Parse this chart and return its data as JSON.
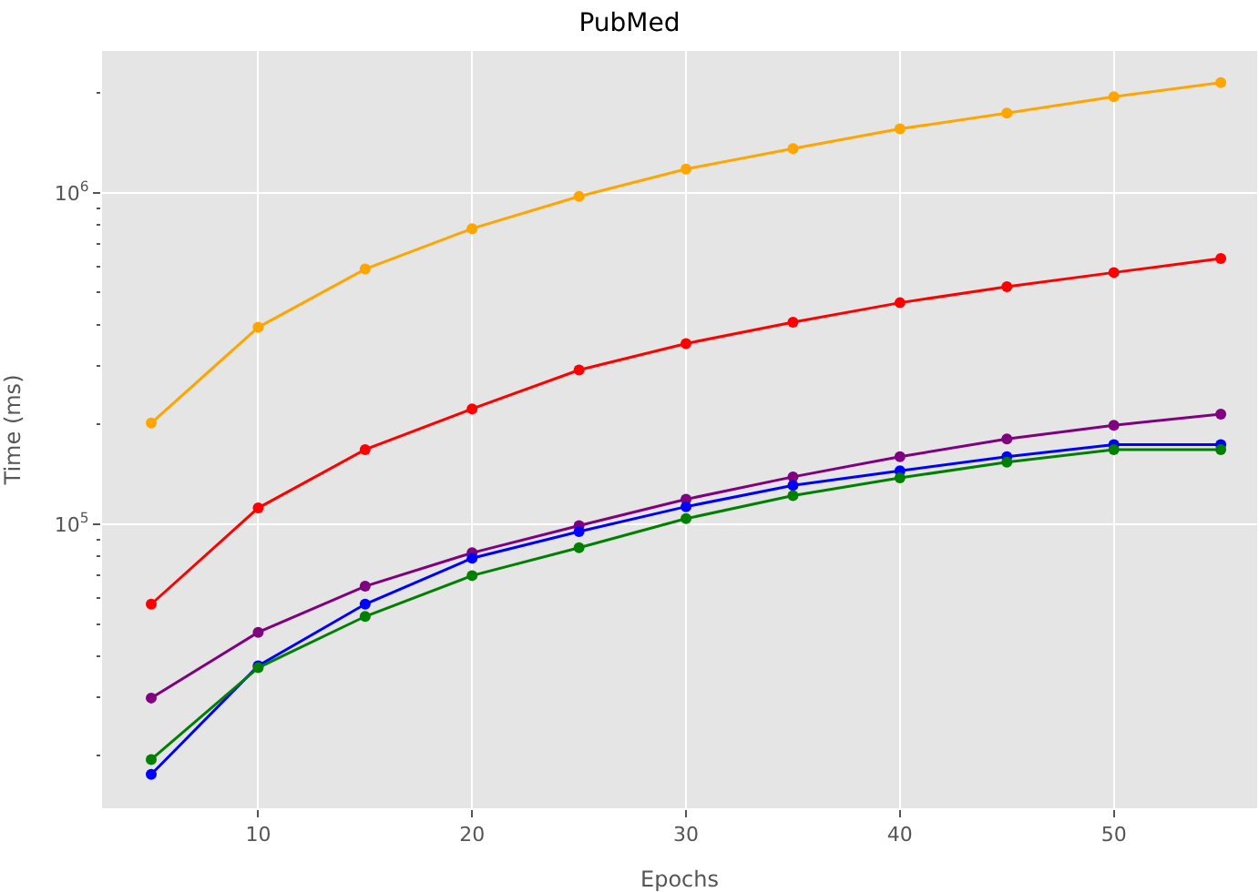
{
  "chart_data": {
    "type": "line",
    "title": "PubMed",
    "xlabel": "Epochs",
    "ylabel": "Time (ms)",
    "log": "y",
    "grid": true,
    "marker": "circle",
    "line_style": "solid",
    "x": [
      5,
      10,
      15,
      20,
      25,
      30,
      35,
      40,
      45,
      50,
      55
    ],
    "xlim": [
      2.7,
      56.7
    ],
    "xticks": [
      10,
      20,
      30,
      40,
      50
    ],
    "ylim": [
      13900,
      2680000
    ],
    "yticks": [
      {
        "value": 20000,
        "label": null
      },
      {
        "value": 30000,
        "label": null
      },
      {
        "value": 40000,
        "label": null
      },
      {
        "value": 50000,
        "label": null
      },
      {
        "value": 60000,
        "label": null
      },
      {
        "value": 70000,
        "label": null
      },
      {
        "value": 80000,
        "label": null
      },
      {
        "value": 90000,
        "label": null
      },
      {
        "value": 100000,
        "label": "10$^{5}$"
      },
      {
        "value": 200000,
        "label": null
      },
      {
        "value": 300000,
        "label": null
      },
      {
        "value": 400000,
        "label": null
      },
      {
        "value": 500000,
        "label": null
      },
      {
        "value": 600000,
        "label": null
      },
      {
        "value": 700000,
        "label": null
      },
      {
        "value": 800000,
        "label": null
      },
      {
        "value": 900000,
        "label": null
      },
      {
        "value": 1000000,
        "label": "10$^{6}$"
      },
      {
        "value": 2000000,
        "label": null
      }
    ],
    "series": [
      {
        "color": "#ffa500",
        "values": [
          202000,
          393000,
          589000,
          780000,
          976000,
          1180000,
          1360000,
          1560000,
          1740000,
          1950000,
          2150000
        ]
      },
      {
        "color": "#ff0000",
        "values": [
          57400,
          112000,
          168000,
          223000,
          292000,
          351000,
          407000,
          466000,
          521000,
          575000,
          634000
        ]
      },
      {
        "color": "#800080",
        "values": [
          29900,
          47200,
          65000,
          82000,
          99000,
          119000,
          139000,
          160000,
          181000,
          199000,
          215000
        ]
      },
      {
        "color": "#0000ff",
        "values": [
          17600,
          37400,
          57400,
          79000,
          95000,
          113000,
          131000,
          145000,
          160000,
          174000,
          174000
        ]
      },
      {
        "color": "#008000",
        "values": [
          19500,
          36900,
          52700,
          70000,
          85000,
          104000,
          122000,
          138000,
          154000,
          168000,
          168000
        ]
      }
    ]
  }
}
